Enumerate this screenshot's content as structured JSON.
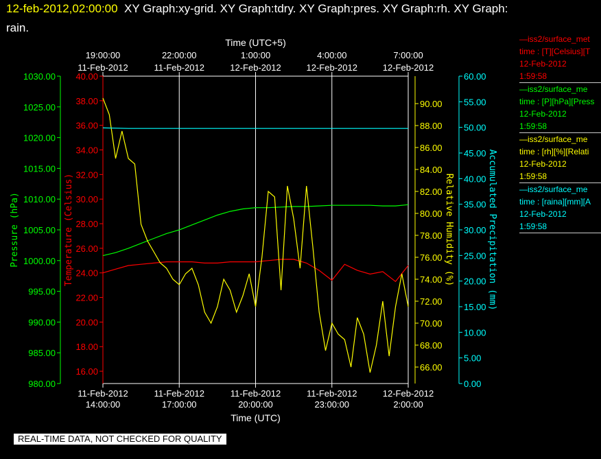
{
  "header": {
    "datetime": "12-feb-2012,02:00:00",
    "graphs": "XY Graph:xy-grid.  XY Graph:tdry.  XY Graph:pres.  XY Graph:rh.  XY Graph:",
    "line2": "rain."
  },
  "notice": "REAL-TIME DATA, NOT CHECKED FOR QUALITY",
  "colors": {
    "temperature": "#ff0000",
    "pressure": "#00ff00",
    "rh": "#ffff00",
    "rain": "#00ffff",
    "frame": "#ffffff"
  },
  "legend": [
    {
      "color": "#ff0000",
      "name": "—iss2/surface_met",
      "desc": "time : [T][Celsius][T",
      "date": "12-Feb-2012",
      "time": "1:59:58"
    },
    {
      "color": "#00ff00",
      "name": "—iss2/surface_me",
      "desc": "time : [P][hPa][Press",
      "date": "12-Feb-2012",
      "time": "1:59:58"
    },
    {
      "color": "#ffff00",
      "name": "—iss2/surface_me",
      "desc": "time : [rh][%][Relati",
      "date": "12-Feb-2012",
      "time": "1:59:58"
    },
    {
      "color": "#00ffff",
      "name": "—iss2/surface_me",
      "desc": "time : [raina][mm][A",
      "date": "12-Feb-2012",
      "time": "1:59:58"
    }
  ],
  "chart_data": {
    "type": "line",
    "x_axis_bottom": {
      "label": "Time (UTC)",
      "ticks": [
        {
          "date": "11-Feb-2012",
          "time": "14:00:00"
        },
        {
          "date": "11-Feb-2012",
          "time": "17:00:00"
        },
        {
          "date": "11-Feb-2012",
          "time": "20:00:00"
        },
        {
          "date": "11-Feb-2012",
          "time": "23:00:00"
        },
        {
          "date": "12-Feb-2012",
          "time": "2:00:00"
        }
      ],
      "range_hours": [
        0,
        12
      ]
    },
    "x_axis_top": {
      "label": "Time (UTC+5)",
      "ticks": [
        {
          "time": "19:00:00",
          "date": "11-Feb-2012"
        },
        {
          "time": "22:00:00",
          "date": "11-Feb-2012"
        },
        {
          "time": "1:00:00",
          "date": "12-Feb-2012"
        },
        {
          "time": "4:00:00",
          "date": "12-Feb-2012"
        },
        {
          "time": "7:00:00",
          "date": "12-Feb-2012"
        }
      ]
    },
    "grid": true,
    "axes": {
      "pressure": {
        "label": "Pressure (hPa)",
        "range": [
          980,
          1030
        ],
        "ticks": [
          "980.00",
          "985.00",
          "990.00",
          "995.00",
          "1000.00",
          "1005.00",
          "1010.00",
          "1015.00",
          "1020.00",
          "1025.00",
          "1030.00"
        ]
      },
      "temperature": {
        "label": "Temperature (Celsius)",
        "range": [
          15,
          40
        ],
        "ticks": [
          "16.00",
          "18.00",
          "20.00",
          "22.00",
          "24.00",
          "26.00",
          "28.00",
          "30.00",
          "32.00",
          "34.00",
          "36.00",
          "38.00",
          "40.00"
        ]
      },
      "rh": {
        "label": "Relative Humidity (%)",
        "range": [
          64.5,
          92.5
        ],
        "ticks": [
          "66.00",
          "68.00",
          "70.00",
          "72.00",
          "74.00",
          "76.00",
          "78.00",
          "80.00",
          "82.00",
          "84.00",
          "86.00",
          "88.00",
          "90.00"
        ]
      },
      "rain": {
        "label": "Accumulated Precipitation (mm)",
        "range": [
          0,
          60
        ],
        "ticks": [
          "0.00",
          "5.00",
          "10.00",
          "15.00",
          "20.00",
          "25.00",
          "30.00",
          "35.00",
          "40.00",
          "45.00",
          "50.00",
          "55.00",
          "60.00"
        ]
      }
    },
    "series": [
      {
        "name": "—iss2/surface_met",
        "axis": "temperature",
        "color": "#ff0000",
        "x": [
          0,
          0.5,
          1,
          1.5,
          2,
          2.5,
          3,
          3.5,
          4,
          4.5,
          5,
          5.5,
          6,
          6.5,
          7,
          7.5,
          8,
          8.5,
          9,
          9.5,
          10,
          10.5,
          11,
          11.5,
          12
        ],
        "y": [
          24.0,
          24.3,
          24.6,
          24.7,
          24.8,
          24.9,
          24.9,
          24.9,
          24.8,
          24.8,
          24.9,
          24.9,
          24.9,
          25.0,
          25.1,
          25.1,
          24.8,
          24.2,
          23.4,
          24.7,
          24.2,
          23.9,
          24.1,
          23.3,
          24.6
        ]
      },
      {
        "name": "—iss2/surface_me",
        "axis": "pressure",
        "color": "#00ff00",
        "x": [
          0,
          0.5,
          1,
          1.5,
          2,
          2.5,
          3,
          3.5,
          4,
          4.5,
          5,
          5.5,
          6,
          6.5,
          7,
          7.5,
          8,
          8.5,
          9,
          9.5,
          10,
          10.5,
          11,
          11.5,
          12
        ],
        "y": [
          1000.8,
          1001.3,
          1002.0,
          1002.8,
          1003.6,
          1004.4,
          1005.0,
          1005.8,
          1006.6,
          1007.4,
          1008.0,
          1008.4,
          1008.6,
          1008.6,
          1008.7,
          1008.8,
          1008.8,
          1008.9,
          1009.0,
          1009.0,
          1009.0,
          1009.0,
          1008.9,
          1008.9,
          1009.1
        ]
      },
      {
        "name": "—iss2/surface_me",
        "axis": "rh",
        "color": "#ffff00",
        "x": [
          0,
          0.25,
          0.5,
          0.75,
          1,
          1.25,
          1.5,
          1.75,
          2,
          2.25,
          2.5,
          2.75,
          3,
          3.25,
          3.5,
          3.75,
          4,
          4.25,
          4.5,
          4.75,
          5,
          5.25,
          5.5,
          5.75,
          6,
          6.25,
          6.5,
          6.75,
          7,
          7.25,
          7.5,
          7.75,
          8,
          8.25,
          8.5,
          8.75,
          9,
          9.25,
          9.5,
          9.75,
          10,
          10.25,
          10.5,
          10.75,
          11,
          11.25,
          11.5,
          11.75,
          12
        ],
        "y": [
          90.5,
          89.0,
          85.0,
          87.5,
          85.0,
          84.5,
          79.0,
          77.5,
          76.5,
          75.5,
          75.0,
          74.0,
          73.5,
          74.5,
          75.0,
          73.5,
          71.0,
          70.0,
          71.5,
          74.0,
          73.0,
          71.0,
          72.5,
          74.5,
          71.5,
          76.0,
          82.0,
          81.5,
          73.0,
          82.5,
          79.5,
          75.0,
          82.5,
          77.0,
          71.0,
          67.5,
          70.0,
          69.0,
          68.5,
          66.0,
          70.5,
          69.0,
          65.5,
          68.0,
          72.0,
          67.0,
          71.5,
          74.5,
          71.5
        ]
      },
      {
        "name": "—iss2/surface_me",
        "axis": "rain",
        "color": "#00ffff",
        "x": [
          0,
          1,
          2,
          3,
          4,
          5,
          6,
          7,
          8,
          9,
          10,
          11,
          12
        ],
        "y": [
          49.9,
          49.8,
          49.8,
          49.8,
          49.8,
          49.8,
          49.8,
          49.8,
          49.8,
          49.8,
          49.8,
          49.8,
          49.8
        ]
      }
    ]
  }
}
